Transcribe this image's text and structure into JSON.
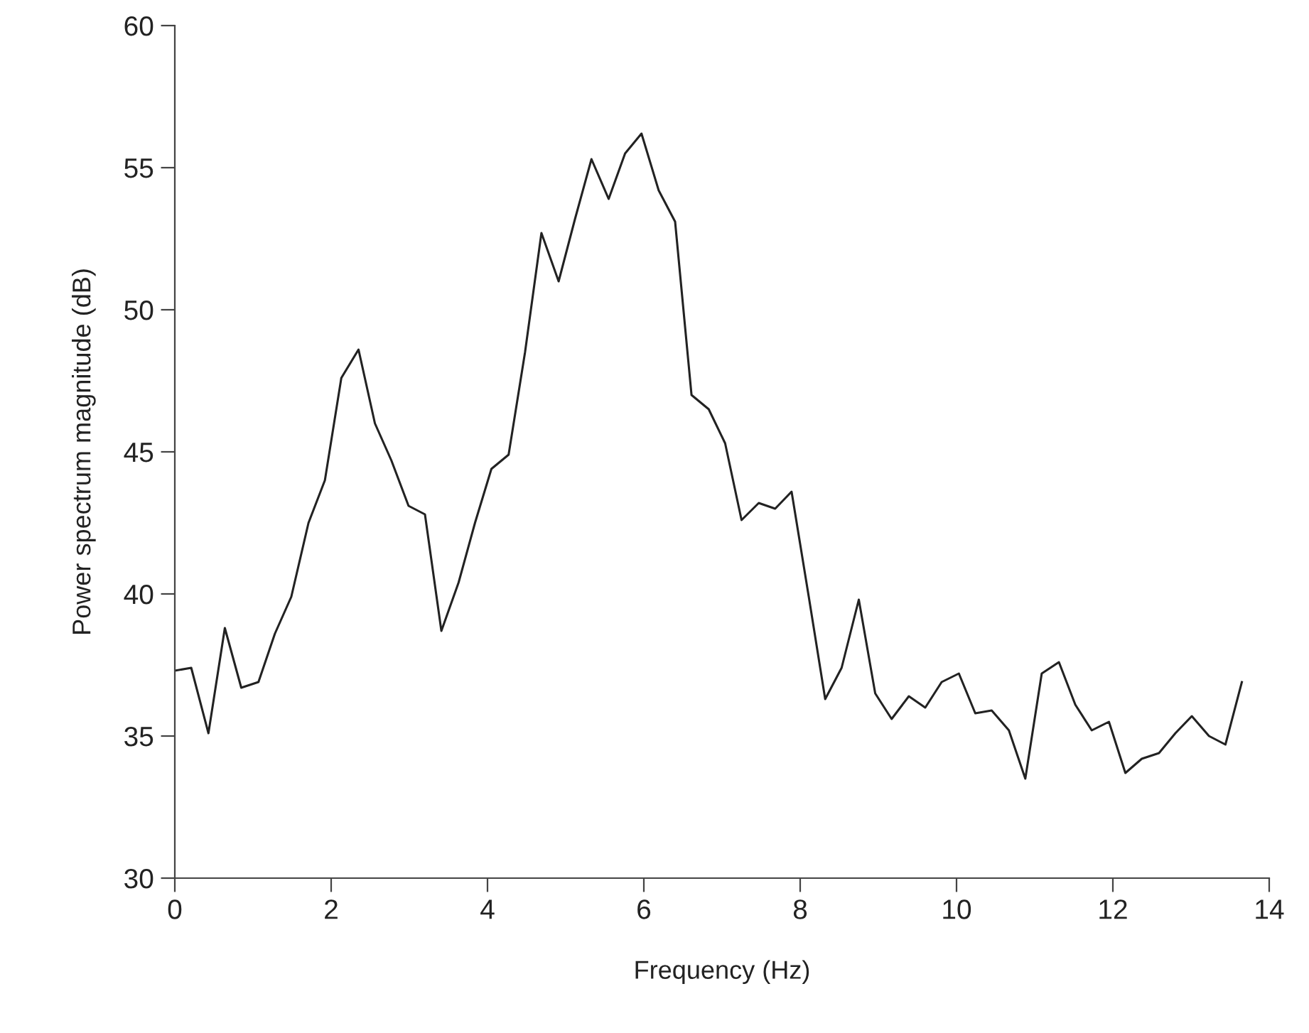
{
  "chart_data": {
    "type": "line",
    "xlabel": "Frequency (Hz)",
    "ylabel": "Power spectrum magnitude (dB)",
    "x": [
      0,
      0.21,
      0.43,
      0.64,
      0.85,
      1.07,
      1.28,
      1.49,
      1.71,
      1.92,
      2.13,
      2.35,
      2.56,
      2.77,
      2.99,
      3.2,
      3.41,
      3.63,
      3.84,
      4.05,
      4.27,
      4.48,
      4.69,
      4.91,
      5.12,
      5.33,
      5.55,
      5.76,
      5.97,
      6.19,
      6.4,
      6.61,
      6.83,
      7.04,
      7.25,
      7.47,
      7.68,
      7.89,
      8.11,
      8.32,
      8.53,
      8.75,
      8.96,
      9.17,
      9.39,
      9.6,
      9.81,
      10.03,
      10.24,
      10.45,
      10.67,
      10.88,
      11.09,
      11.31,
      11.52,
      11.73,
      11.95,
      12.16,
      12.37,
      12.59,
      12.8,
      13.01,
      13.23,
      13.44,
      13.65
    ],
    "series": [
      {
        "color": "#222222",
        "values": [
          37.3,
          37.4,
          35.1,
          38.8,
          36.7,
          36.9,
          38.6,
          39.9,
          42.5,
          44.0,
          47.6,
          48.6,
          46.0,
          44.7,
          43.1,
          42.8,
          38.7,
          40.4,
          42.5,
          44.4,
          44.9,
          48.5,
          52.7,
          51.0,
          53.2,
          55.3,
          53.9,
          55.5,
          56.2,
          54.2,
          53.1,
          47.0,
          46.5,
          45.3,
          42.6,
          43.2,
          43.0,
          43.6,
          39.9,
          36.3,
          37.4,
          39.8,
          36.5,
          35.6,
          36.4,
          36.0,
          36.9,
          37.2,
          35.8,
          35.9,
          35.2,
          33.5,
          37.2,
          37.6,
          36.1,
          35.2,
          35.5,
          33.7,
          34.2,
          34.4,
          35.1,
          35.7,
          35.0,
          34.7,
          36.9
        ]
      }
    ],
    "xlim": [
      0,
      14
    ],
    "xticks": [
      0,
      2,
      4,
      6,
      8,
      10,
      12,
      14
    ],
    "ylim": [
      30,
      60
    ],
    "yticks": [
      30,
      35,
      40,
      45,
      50,
      55,
      60
    ],
    "grid": false,
    "legend": false,
    "marker": "none",
    "line_style": "solid"
  }
}
